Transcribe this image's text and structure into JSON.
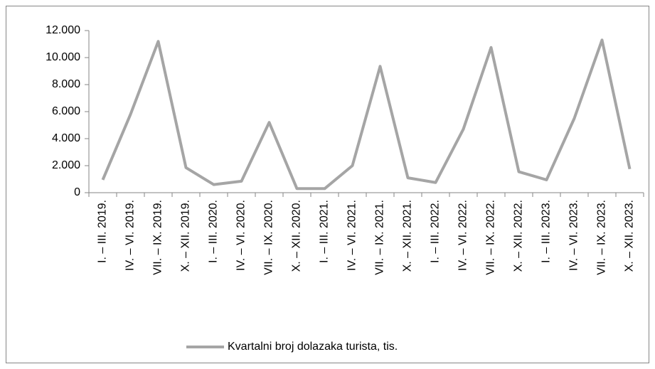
{
  "chart_data": {
    "type": "line",
    "categories": [
      "I. – III. 2019.",
      "IV. – VI. 2019.",
      "VII. – IX. 2019.",
      "X. – XII. 2019.",
      "I. – III. 2020.",
      "IV. – VI. 2020.",
      "VII. – IX. 2020.",
      "X. – XII. 2020.",
      "I. – III. 2021.",
      "IV. – VI. 2021.",
      "VII. – IX. 2021.",
      "X. – XII. 2021.",
      "I. – III. 2022.",
      "IV. – VI. 2022.",
      "VII. – IX. 2022.",
      "X. – XII. 2022.",
      "I. – III. 2023.",
      "IV. – VI. 2023.",
      "VII. – IX. 2023.",
      "X. – XII. 2023."
    ],
    "series": [
      {
        "name": "Kvartalni broj dolazaka turista, tis.",
        "color": "#a5a5a5",
        "values": [
          950,
          5800,
          11200,
          1850,
          600,
          850,
          5200,
          300,
          300,
          2000,
          9350,
          1100,
          750,
          4700,
          10750,
          1550,
          950,
          5500,
          11300,
          1750
        ]
      }
    ],
    "ylim": [
      0,
      12000
    ],
    "yticks": [
      {
        "value": 0,
        "label": "0"
      },
      {
        "value": 2000,
        "label": "2.000"
      },
      {
        "value": 4000,
        "label": "4.000"
      },
      {
        "value": 6000,
        "label": "6.000"
      },
      {
        "value": 8000,
        "label": "8.000"
      },
      {
        "value": 10000,
        "label": "10.000"
      },
      {
        "value": 12000,
        "label": "12.000"
      }
    ],
    "grid": false,
    "legend": "bottom"
  }
}
